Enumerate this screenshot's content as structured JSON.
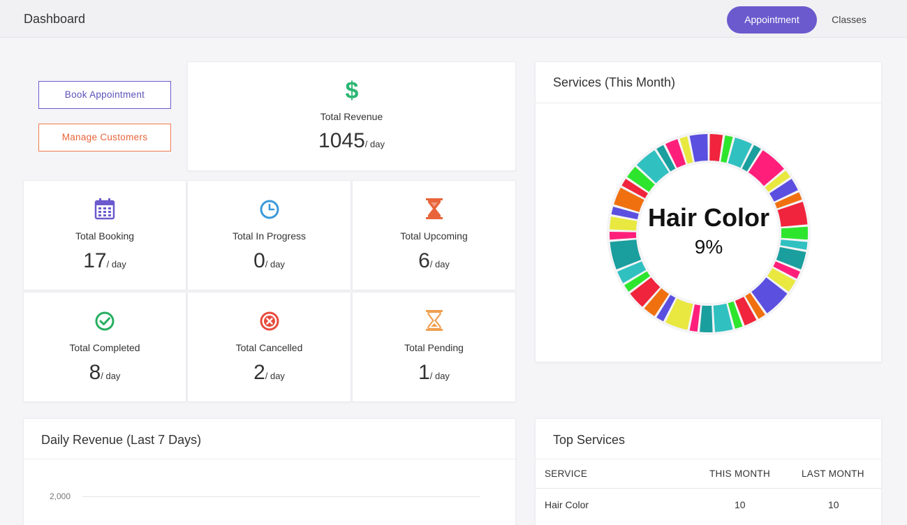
{
  "header": {
    "title": "Dashboard",
    "tabs": [
      {
        "label": "Appointment",
        "active": true
      },
      {
        "label": "Classes",
        "active": false
      }
    ]
  },
  "actions": {
    "book_label": "Book Appointment",
    "manage_label": "Manage Customers"
  },
  "revenue": {
    "label": "Total Revenue",
    "value": "1045",
    "unit": "/ day",
    "icon": "dollar-icon"
  },
  "stats": [
    {
      "label": "Total Booking",
      "value": "17",
      "unit": "/ day",
      "icon": "calendar-icon",
      "color": "#6a5acd"
    },
    {
      "label": "Total In Progress",
      "value": "0",
      "unit": "/ day",
      "icon": "clock-icon",
      "color": "#3a9ad9"
    },
    {
      "label": "Total Upcoming",
      "value": "6",
      "unit": "/ day",
      "icon": "hourglass-icon",
      "color": "#e8643a"
    },
    {
      "label": "Total Completed",
      "value": "8",
      "unit": "/ day",
      "icon": "check-circle-icon",
      "color": "#27ae60"
    },
    {
      "label": "Total Cancelled",
      "value": "2",
      "unit": "/ day",
      "icon": "x-circle-icon",
      "color": "#e74c3c"
    },
    {
      "label": "Total Pending",
      "value": "1",
      "unit": "/ day",
      "icon": "hourglass-outline-icon",
      "color": "#f0a050"
    }
  ],
  "services_chart": {
    "title": "Services (This Month)",
    "center_label": "Hair Color",
    "center_value": "9%",
    "palette": [
      "#f0243c",
      "#1a9e9e",
      "#5b4fe0",
      "#2ee52e",
      "#ff1f7a",
      "#f07010",
      "#30c0c0",
      "#e8e840"
    ]
  },
  "daily_revenue": {
    "title": "Daily Revenue (Last 7 Days)",
    "y_tick": "2,000"
  },
  "top_services": {
    "title": "Top Services",
    "columns": [
      "SERVICE",
      "THIS MONTH",
      "LAST MONTH"
    ],
    "rows": [
      {
        "service": "Hair Color",
        "this_month": "10",
        "last_month": "10"
      }
    ]
  },
  "colors": {
    "accent": "#6a5acd",
    "orange": "#ef7b4e",
    "green": "#27ae60",
    "dollar": "#2bb673"
  }
}
